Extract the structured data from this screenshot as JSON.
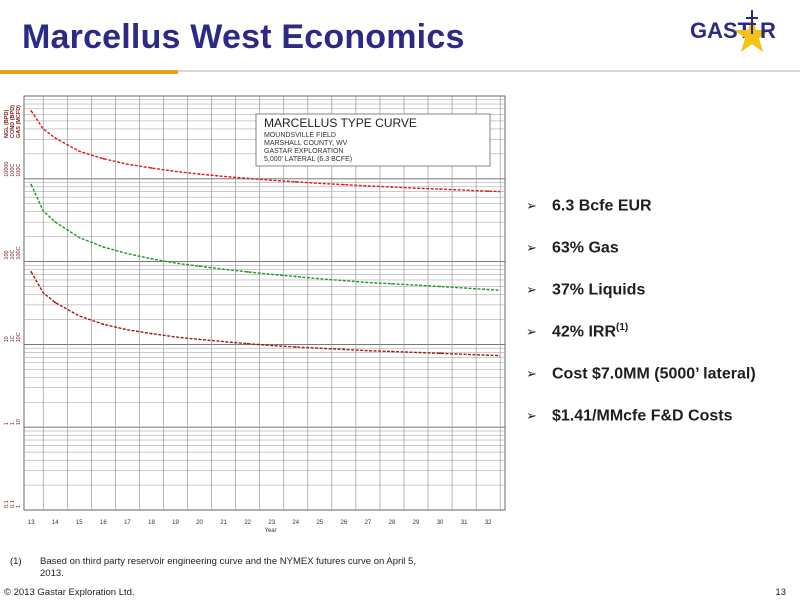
{
  "title": "Marcellus West Economics",
  "logo": {
    "text_left": "GAST",
    "text_right": "R",
    "star_color": "#f2c316",
    "color": "#2d2a86"
  },
  "bullets": [
    {
      "text": "6.3 Bcfe EUR",
      "sup": ""
    },
    {
      "text": "63% Gas",
      "sup": ""
    },
    {
      "text": "37% Liquids",
      "sup": ""
    },
    {
      "text": "42% IRR",
      "sup": "(1)"
    },
    {
      "text": "Cost $7.0MM (5000’ lateral)",
      "sup": ""
    },
    {
      "text": "$1.41/MMcfe F&D Costs",
      "sup": ""
    }
  ],
  "bullet_marker": "➢",
  "footnote": {
    "num": "(1)",
    "text": "Based on third party reservoir engineering curve and the NYMEX futures curve on April 5, 2013."
  },
  "copyright": "© 2013 Gastar Exploration Ltd.",
  "page_number": "13",
  "chart_data": {
    "type": "line",
    "legend_box": {
      "title": "MARCELLUS TYPE CURVE",
      "lines": [
        "MOUNDSVILLE FIELD",
        "MARSHALL COUNTY, WV",
        "GASTAR EXPLORATION",
        "5,000' LATERAL (6.3 BCFE)"
      ]
    },
    "xlabel": "Year",
    "x_ticks": [
      "13",
      "14",
      "15",
      "16",
      "17",
      "18",
      "19",
      "20",
      "21",
      "22",
      "23",
      "24",
      "25",
      "26",
      "27",
      "28",
      "29",
      "30",
      "31",
      "32"
    ],
    "y_axis_labels": [
      [
        "NGL (BPD)",
        "COND (BPD)",
        "GAS (MCFD)"
      ]
    ],
    "y_decades": [
      {
        "labels": [
          "0.1",
          "0.1",
          "1"
        ]
      },
      {
        "labels": [
          "1",
          "1",
          "10"
        ]
      },
      {
        "labels": [
          "10",
          "1C",
          "10C"
        ]
      },
      {
        "labels": [
          "100",
          "10C",
          "100C"
        ]
      },
      {
        "labels": [
          "10000",
          "100C",
          "100C"
        ]
      }
    ],
    "log_scale": true,
    "decades": 4,
    "grid": true,
    "series": [
      {
        "color": "#e01818",
        "x": [
          13,
          13.5,
          14,
          15,
          16,
          17,
          18,
          19,
          20,
          21,
          22,
          23,
          24,
          25,
          26,
          27,
          28,
          29,
          30,
          31,
          32,
          32.5
        ],
        "y": [
          6600,
          4000,
          3100,
          2150,
          1750,
          1500,
          1350,
          1230,
          1140,
          1070,
          1010,
          960,
          920,
          880,
          850,
          820,
          795,
          770,
          750,
          730,
          710,
          700
        ]
      },
      {
        "color": "#1e9a1e",
        "x": [
          13,
          13.5,
          14,
          15,
          16,
          17,
          18,
          19,
          20,
          21,
          22,
          23,
          24,
          25,
          26,
          27,
          28,
          29,
          30,
          31,
          32,
          32.5
        ],
        "y": [
          850,
          410,
          300,
          195,
          150,
          125,
          108,
          96,
          88,
          81,
          75,
          70,
          66,
          62,
          59,
          56,
          54,
          52,
          50,
          48,
          46,
          45
        ]
      },
      {
        "color": "#a01818",
        "x": [
          13,
          13.5,
          14,
          15,
          16,
          17,
          18,
          19,
          20,
          21,
          22,
          23,
          24,
          25,
          26,
          27,
          28,
          29,
          30,
          31,
          32,
          32.5
        ],
        "y": [
          75,
          42,
          32,
          22,
          17.5,
          15,
          13.5,
          12.3,
          11.5,
          10.8,
          10.2,
          9.7,
          9.3,
          9.0,
          8.7,
          8.4,
          8.2,
          8.0,
          7.8,
          7.6,
          7.4,
          7.3
        ]
      }
    ]
  }
}
